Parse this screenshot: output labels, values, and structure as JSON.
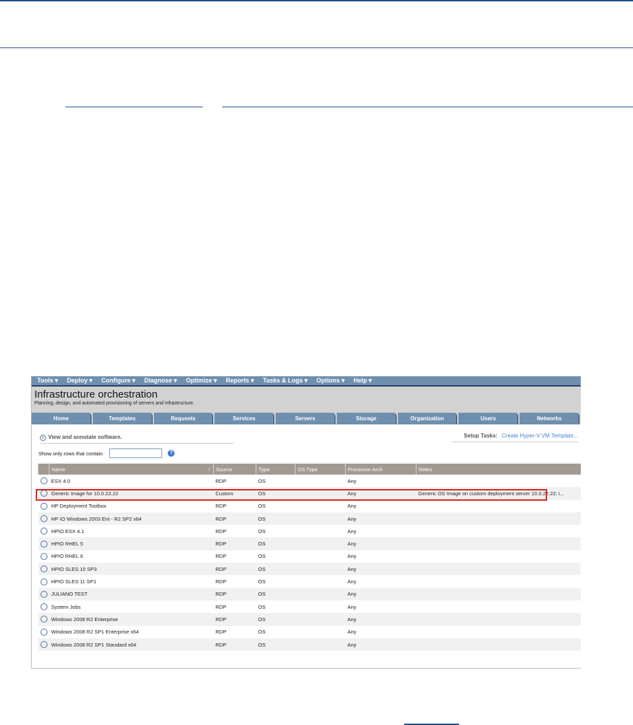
{
  "app": {
    "menu": [
      "Tools ▾",
      "Deploy ▾",
      "Configure ▾",
      "Diagnose ▾",
      "Optimize ▾",
      "Reports ▾",
      "Tasks & Logs ▾",
      "Options ▾",
      "Help ▾"
    ],
    "title": "Infrastructure orchestration",
    "subtitle": "Planning, design, and automated provisioning of servers and infrastructure.",
    "tabs": [
      "Home",
      "Templates",
      "Requests",
      "Services",
      "Servers",
      "Storage",
      "Organization",
      "Users",
      "Networks"
    ],
    "info": "View and annotate software.",
    "setup_label": "Setup Tasks:",
    "setup_link": "Create Hyper-V VM Template...",
    "filter_label": "Show only rows that contain",
    "filter_value": "",
    "columns": [
      "Name",
      "Source",
      "Type",
      "OS Type",
      "Processor Arch",
      "Notes"
    ],
    "sort_icon": "↑",
    "rows": [
      [
        "ESX 4.0",
        "RDP",
        "OS",
        "",
        "Any",
        ""
      ],
      [
        "Generic Image for 10.0.22.22",
        "Custom",
        "OS",
        "",
        "Any",
        "Generic OS Image on custom deployment server 10.0.22.22; i..."
      ],
      [
        "HP Deployment Toolbox",
        "RDP",
        "OS",
        "",
        "Any",
        ""
      ],
      [
        "HP IO Windows 2003 Ent - R2 SP2 x64",
        "RDP",
        "OS",
        "",
        "Any",
        ""
      ],
      [
        "HPIO ESX 4.1",
        "RDP",
        "OS",
        "",
        "Any",
        ""
      ],
      [
        "HPIO RHEL 5",
        "RDP",
        "OS",
        "",
        "Any",
        ""
      ],
      [
        "HPIO RHEL 6",
        "RDP",
        "OS",
        "",
        "Any",
        ""
      ],
      [
        "HPIO SLES 10 SP3",
        "RDP",
        "OS",
        "",
        "Any",
        ""
      ],
      [
        "HPIO SLES 11 SP1",
        "RDP",
        "OS",
        "",
        "Any",
        ""
      ],
      [
        "JULIANO TEST",
        "RDP",
        "OS",
        "",
        "Any",
        ""
      ],
      [
        "System Jobs",
        "RDP",
        "OS",
        "",
        "Any",
        ""
      ],
      [
        "Windows 2008 R2 Enterprise",
        "RDP",
        "OS",
        "",
        "Any",
        ""
      ],
      [
        "Windows 2008 R2 SP1 Enterprise x64",
        "RDP",
        "OS",
        "",
        "Any",
        ""
      ],
      [
        "Windows 2008 R2 SP1 Standard x64",
        "RDP",
        "OS",
        "",
        "Any",
        ""
      ]
    ],
    "highlight_color": "#e02020",
    "accent": "#1d4f85"
  }
}
